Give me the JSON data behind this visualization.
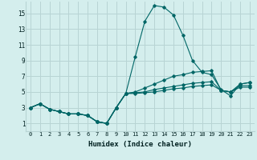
{
  "xlabel": "Humidex (Indice chaleur)",
  "ylabel": "",
  "bg_color": "#d4eeed",
  "grid_color": "#b8d4d4",
  "line_color": "#006666",
  "xlim": [
    -0.5,
    23.5
  ],
  "ylim": [
    0,
    16.5
  ],
  "xticks": [
    0,
    1,
    2,
    3,
    4,
    5,
    6,
    7,
    8,
    9,
    10,
    11,
    12,
    13,
    14,
    15,
    16,
    17,
    18,
    19,
    20,
    21,
    22,
    23
  ],
  "yticks": [
    1,
    3,
    5,
    7,
    9,
    11,
    13,
    15
  ],
  "series": [
    [
      3.0,
      3.5,
      2.8,
      2.5,
      2.2,
      2.2,
      2.0,
      1.2,
      1.0,
      3.0,
      4.8,
      9.5,
      14.0,
      16.0,
      15.8,
      14.8,
      12.2,
      9.0,
      7.5,
      7.2,
      5.3,
      4.5,
      6.0,
      6.2
    ],
    [
      3.0,
      3.5,
      2.8,
      2.5,
      2.2,
      2.2,
      2.0,
      1.2,
      1.0,
      3.0,
      4.8,
      5.0,
      5.5,
      6.0,
      6.5,
      7.0,
      7.2,
      7.5,
      7.6,
      7.7,
      5.2,
      5.0,
      6.0,
      6.2
    ],
    [
      3.0,
      3.5,
      2.8,
      2.5,
      2.2,
      2.2,
      2.0,
      1.2,
      1.0,
      3.0,
      4.8,
      4.9,
      5.0,
      5.3,
      5.5,
      5.7,
      5.9,
      6.1,
      6.2,
      6.3,
      5.2,
      5.0,
      5.8,
      5.8
    ],
    [
      3.0,
      3.5,
      2.8,
      2.5,
      2.2,
      2.2,
      2.0,
      1.2,
      1.0,
      3.0,
      4.8,
      4.8,
      4.9,
      5.0,
      5.2,
      5.4,
      5.5,
      5.7,
      5.8,
      5.9,
      5.2,
      5.0,
      5.6,
      5.6
    ]
  ]
}
